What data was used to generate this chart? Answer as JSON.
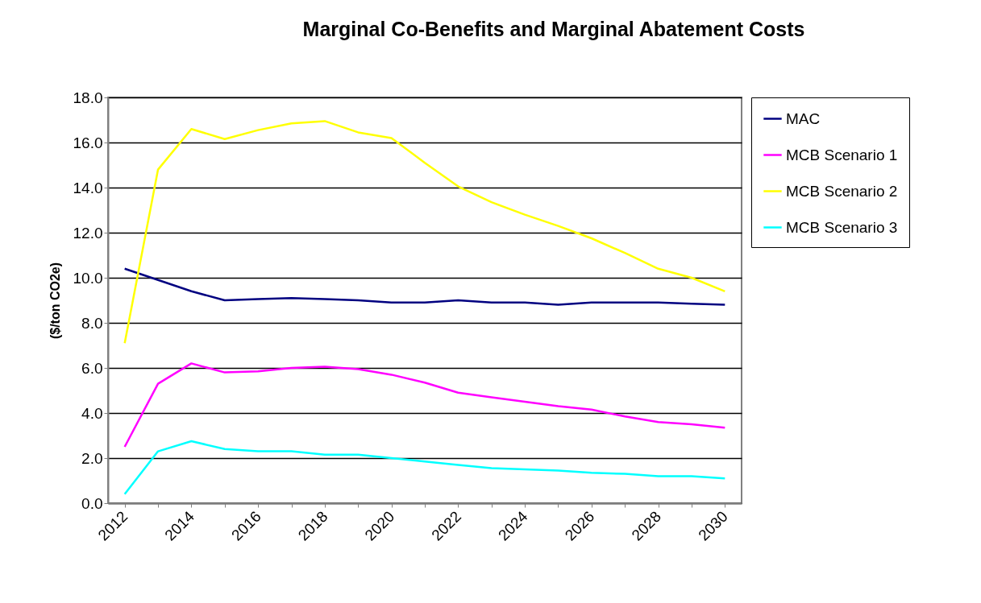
{
  "chart_data": {
    "type": "line",
    "title": "Marginal Co-Benefits and Marginal Abatement Costs",
    "ylabel": "($/ton CO2e)",
    "categories": [
      "2012",
      null,
      "2014",
      null,
      "2016",
      null,
      "2018",
      null,
      "2020",
      null,
      "2022",
      null,
      "2024",
      null,
      "2026",
      null,
      "2028",
      null,
      "2030"
    ],
    "series": [
      {
        "name": "MAC",
        "color": "#000080",
        "values": [
          10.4,
          9.9,
          9.4,
          9.0,
          9.05,
          9.1,
          9.05,
          9.0,
          8.9,
          8.9,
          9.0,
          8.9,
          8.9,
          8.8,
          8.9,
          8.9,
          8.9,
          8.85,
          8.8
        ]
      },
      {
        "name": "MCB Scenario 1",
        "color": "#ff00ff",
        "values": [
          2.5,
          5.3,
          6.2,
          5.8,
          5.85,
          6.0,
          6.05,
          5.95,
          5.7,
          5.35,
          4.9,
          4.7,
          4.5,
          4.3,
          4.15,
          3.85,
          3.6,
          3.5,
          3.35
        ]
      },
      {
        "name": "MCB Scenario 2",
        "color": "#ffff00",
        "values": [
          7.1,
          14.8,
          16.6,
          16.15,
          16.55,
          16.85,
          16.95,
          16.45,
          16.2,
          15.1,
          14.05,
          13.35,
          12.8,
          12.3,
          11.75,
          11.1,
          10.4,
          10.0,
          9.4
        ]
      },
      {
        "name": "MCB Scenario 3",
        "color": "#00ffff",
        "values": [
          0.4,
          2.3,
          2.75,
          2.4,
          2.3,
          2.3,
          2.15,
          2.15,
          2.0,
          1.85,
          1.7,
          1.55,
          1.5,
          1.45,
          1.35,
          1.3,
          1.2,
          1.2,
          1.1
        ]
      }
    ],
    "ylim": [
      0,
      18
    ],
    "yticks": [
      {
        "value": 0,
        "label": "0.0"
      },
      {
        "value": 2,
        "label": "2.0"
      },
      {
        "value": 4,
        "label": "4.0"
      },
      {
        "value": 6,
        "label": "6.0"
      },
      {
        "value": 8,
        "label": "8.0"
      },
      {
        "value": 10,
        "label": "10.0"
      },
      {
        "value": 12,
        "label": "12.0"
      },
      {
        "value": 14,
        "label": "14.0"
      },
      {
        "value": 16,
        "label": "16.0"
      },
      {
        "value": 18,
        "label": "18.0"
      }
    ],
    "grid": "y",
    "legend": "right",
    "marker": "none",
    "line_style": "solid"
  }
}
